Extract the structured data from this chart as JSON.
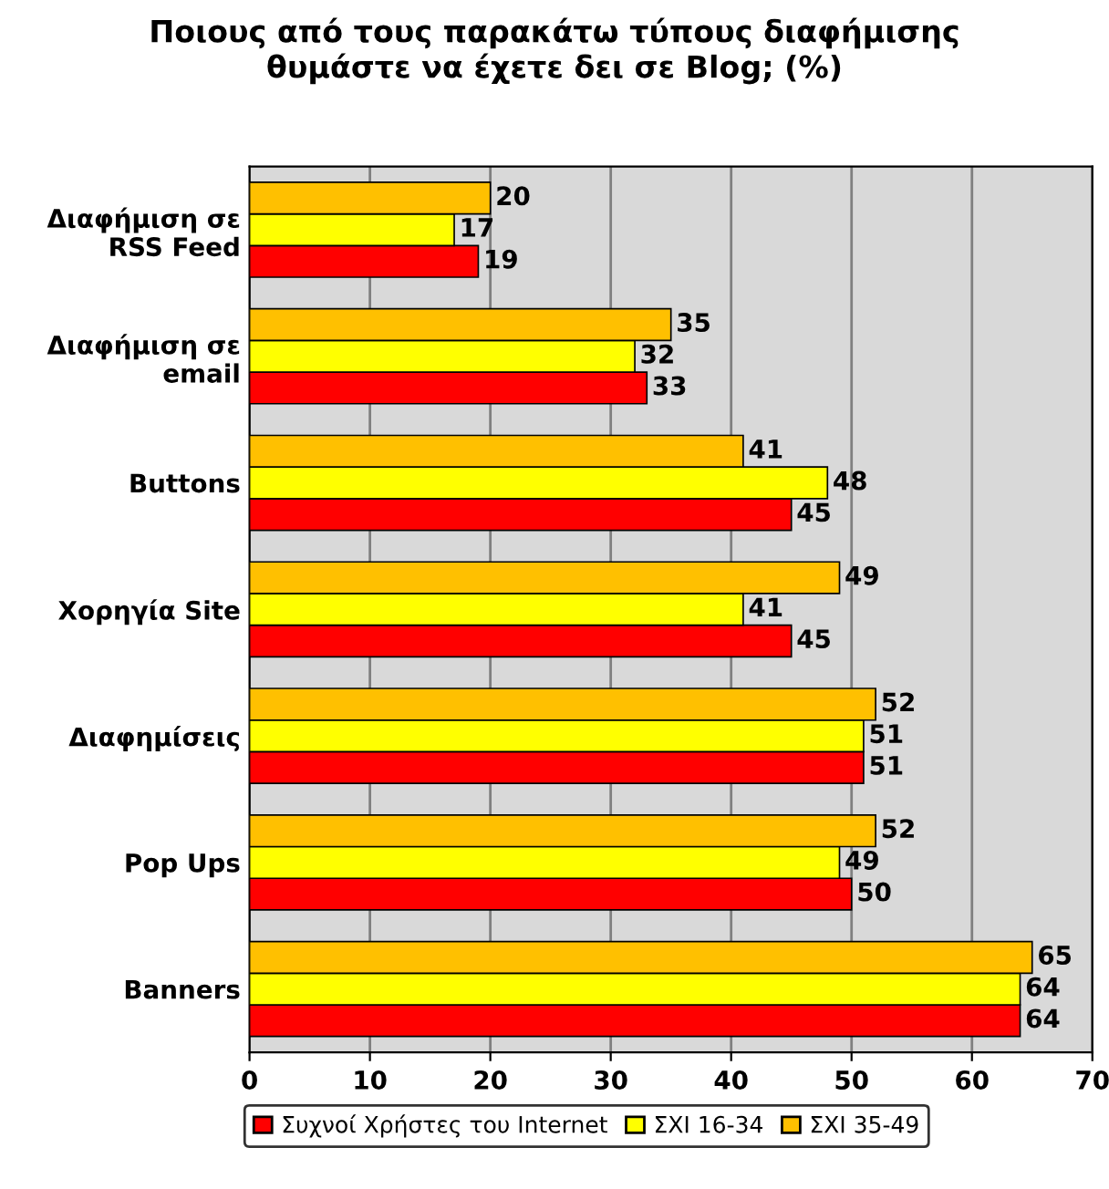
{
  "chart_data": {
    "type": "bar",
    "orientation": "horizontal",
    "title": "Ποιους από τους παρακάτω τύπους διαφήμισης\nθυμάστε να έχετε δει σε Blog; (%)",
    "categories": [
      "Διαφήμιση σε\nRSS Feed",
      "Διαφήμιση σε\nemail",
      "Buttons",
      "Χορηγία Site",
      "Διαφημίσεις",
      "Pop Ups",
      "Banners"
    ],
    "series": [
      {
        "name": "Συχνοί Χρήστες του Internet",
        "color": "#ff0000",
        "values": [
          19,
          33,
          45,
          45,
          51,
          50,
          64
        ]
      },
      {
        "name": "ΣΧΙ 16-34",
        "color": "#ffff00",
        "values": [
          17,
          32,
          48,
          41,
          51,
          49,
          64
        ]
      },
      {
        "name": "ΣΧΙ 35-49",
        "color": "#ffc000",
        "values": [
          20,
          35,
          41,
          49,
          52,
          52,
          65
        ]
      }
    ],
    "xlim": [
      0,
      70
    ],
    "xticks": [
      0,
      10,
      20,
      30,
      40,
      50,
      60,
      70
    ],
    "grid": "x",
    "legend": "bottom",
    "data_labels": true
  }
}
